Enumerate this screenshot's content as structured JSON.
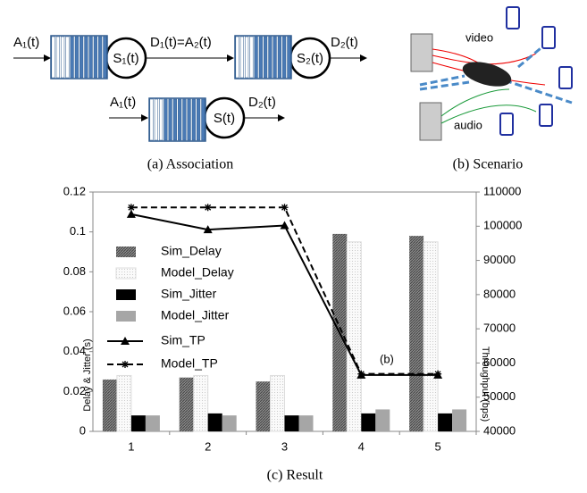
{
  "association": {
    "labels": [
      "A₁(t)",
      "S₁(t)",
      "D₁(t)=A₂(t)",
      "S₂(t)",
      "D₂(t)",
      "A₁(t)",
      "S(t)",
      "D₂(t)"
    ],
    "caption": "(a) Association"
  },
  "scenario": {
    "labels": [
      "video",
      "audio"
    ],
    "caption": "(b) Scenario"
  },
  "chart_data": {
    "type": "bar",
    "caption": "(c) Result",
    "y_label": "Delay & Jitter (s)",
    "y2_label": "Throughput (bps)",
    "categories": [
      1,
      2,
      3,
      4,
      5
    ],
    "ylim": [
      0,
      0.12
    ],
    "yticks": [
      0,
      0.02,
      0.04,
      0.06,
      0.08,
      0.1,
      0.12
    ],
    "y2lim": [
      40000,
      110000
    ],
    "y2ticks": [
      40000,
      50000,
      60000,
      70000,
      80000,
      90000,
      100000,
      110000
    ],
    "series": [
      {
        "name": "Sim_Delay",
        "color": "#7a7a7a",
        "values": [
          0.026,
          0.027,
          0.025,
          0.099,
          0.098
        ]
      },
      {
        "name": "Model_Delay",
        "color": "#f2f2f2",
        "values": [
          0.028,
          0.028,
          0.028,
          0.095,
          0.095
        ]
      },
      {
        "name": "Sim_Jitter",
        "color": "#000000",
        "values": [
          0.008,
          0.009,
          0.008,
          0.009,
          0.009
        ]
      },
      {
        "name": "Model_Jitter",
        "color": "#a6a6a6",
        "values": [
          0.008,
          0.008,
          0.008,
          0.011,
          0.011
        ]
      },
      {
        "name": "Sim_TP",
        "type": "line",
        "axis": "y2",
        "color": "#000000",
        "line_style": "solid",
        "marker": "triangle",
        "values": [
          103500,
          99000,
          100200,
          56500,
          56500
        ]
      },
      {
        "name": "Model_TP",
        "type": "line",
        "axis": "y2",
        "color": "#000000",
        "line_style": "dashed",
        "marker": "asterisk",
        "values": [
          105500,
          105500,
          105500,
          56800,
          56800
        ]
      }
    ],
    "annotation": "(b)"
  }
}
